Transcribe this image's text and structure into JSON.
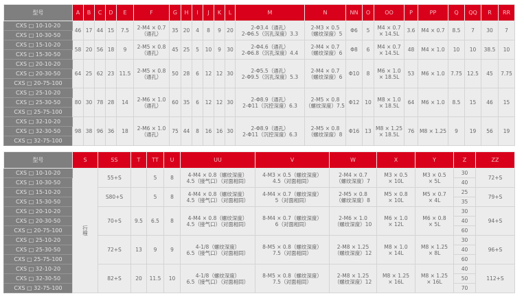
{
  "colors": {
    "header": "#d8001b",
    "model_column": "#7f7f7f",
    "body": "#ececec"
  },
  "table1": {
    "headers": [
      "型号",
      "A",
      "B",
      "C",
      "D",
      "E",
      "F",
      "G",
      "H",
      "I",
      "J",
      "K",
      "L",
      "M",
      "N",
      "NN",
      "O",
      "OO",
      "P",
      "PP",
      "Q",
      "QQ",
      "R",
      "RR"
    ],
    "groups": [
      {
        "models": [
          "CXS □ 10-10-20",
          "CXS □ 10-30-50"
        ],
        "values": [
          "46",
          "17",
          "44",
          "15",
          "7.5",
          "2-M4 × 0.7\n（通孔）",
          "35",
          "20",
          "4",
          "8",
          "9",
          "20",
          "2-Φ3.4（通孔）\n2-Φ6.5（沉孔深度）3.3",
          "2-M3 × 0.5\n（螺纹深度）5",
          "Φ6",
          "5",
          "M4 × 0.7\n× 14.5L",
          "3.6",
          "M4 × 0.7",
          "8.5",
          "7",
          "30",
          "7"
        ]
      },
      {
        "models": [
          "CXS □ 15-10-20",
          "CXS □ 15-30-50"
        ],
        "values": [
          "58",
          "20",
          "56",
          "18",
          "9",
          "2-M5 × 0.8\n（通孔）",
          "45",
          "25",
          "5",
          "10",
          "9",
          "30",
          "2-Φ4.6（通孔）\n2-Φ6.8（沉孔深度）4.4",
          "2-M4 × 0.7\n（螺纹深度）6",
          "Φ8",
          "6",
          "M4 × 0.7\n× 14.5L",
          "48",
          "M4 × 1.0",
          "10",
          "10",
          "38.5",
          "10"
        ]
      },
      {
        "models": [
          "CXS □ 20-10-20",
          "CXS □ 20-30-50",
          "CXS □ 20-75-100"
        ],
        "values": [
          "64",
          "25",
          "62",
          "23",
          "11.5",
          "2-M5 × 0.8\n（通孔）",
          "50",
          "28",
          "6",
          "12",
          "12",
          "30",
          "2-Φ5.5（通孔）\n2-Φ9.5（沉孔深度）5.3",
          "2-M4 × 0.7\n（螺纹深度）6",
          "Φ10",
          "8",
          "M6 × 1.0\n× 18.5L",
          "53",
          "M6 × 1.0",
          "7.75",
          "12.5",
          "45",
          "7.75"
        ]
      },
      {
        "models": [
          "CXS □ 25-10-20",
          "CXS □ 25-30-50",
          "CXS □ 25-75-100"
        ],
        "values": [
          "80",
          "30",
          "78",
          "28",
          "14",
          "2-M6 × 1.0\n（通孔）",
          "60",
          "35",
          "6",
          "12",
          "12",
          "30",
          "2-Φ8.9（通孔）\n2-Φ11（沉控深度）6.3",
          "2-M5 × 0.8\n（螺纹深度）7.5",
          "Φ12",
          "10",
          "M8 × 1.0\n× 18.5L",
          "64",
          "M6 × 1.0",
          "8.5",
          "15",
          "46",
          "15"
        ]
      },
      {
        "models": [
          "CXS □ 32-10-20",
          "CXS □ 32-30-50",
          "CXS □ 32-75-100"
        ],
        "values": [
          "98",
          "38",
          "96",
          "36",
          "18",
          "2-M6 × 1.0\n（通孔）",
          "75",
          "44",
          "8",
          "16",
          "16",
          "30",
          "2-Φ8.9（通孔）\n2-Φ11（沉控深度）6.3",
          "2-M5 × 0.8\n（螺纹深度）8",
          "Φ16",
          "13",
          "M8 × 1.25\n× 18.5L",
          "76",
          "M8 × 1.25",
          "9",
          "19",
          "56",
          "19"
        ]
      }
    ]
  },
  "table2": {
    "headers": [
      "型号",
      "S",
      "SS",
      "T",
      "TT",
      "U",
      "UU",
      "V",
      "W",
      "X",
      "Y",
      "Z",
      "ZZ"
    ],
    "s_label": "行程",
    "groups": [
      {
        "models": [
          "CXS □ 10-10-20",
          "CXS □ 10-30-50"
        ],
        "values": [
          "55+S",
          "",
          "5",
          "8",
          "4-M4 × 0.8（螺纹深度）\n4.5（接气口）（对面相同）",
          "4-M3 × 0.5（螺纹深度）\n4.5（对面相同）",
          "2-M4 × 0.7\n（螺纹深度）7",
          "M3 × 0.5\n× 10L",
          "M3 × 0.5\n× 5L"
        ],
        "z": [
          "30",
          "40"
        ],
        "zz": "72+S"
      },
      {
        "models": [
          "CXS □ 15-10-20",
          "CXS □ 15-30-50"
        ],
        "values": [
          "S80+S",
          "",
          "5",
          "8",
          "4-M4 × 0.8（螺纹深度）\n4.5（接气口）（对面相同）",
          "4-M4 × 0.7（螺纹深度）\n5（对面相同）",
          "2-M5 × 0.8\n（螺纹深度）8",
          "M5 × 0.8\n× 10L",
          "M5 × 0.7\n× 4L"
        ],
        "z": [
          "25",
          "35"
        ],
        "zz": "79+S"
      },
      {
        "models": [
          "CXS □ 20-10-20",
          "CXS □ 20-30-50",
          "CXS □ 20-75-100"
        ],
        "values": [
          "70+S",
          "9.5",
          "6.5",
          "8",
          "4-M4 × 0.8（螺纹深度）\n4.5（接气口）（对面相同）",
          "8-M4 × 0.7（螺纹深度）\n6（对面相同）",
          "2-M6 × 1.0\n（螺纹深度）10",
          "M6 × 1.0\n× 12L",
          "M6 × 0.8\n× 5L"
        ],
        "z": [
          "30",
          "40",
          "60"
        ],
        "zz": "94+S"
      },
      {
        "models": [
          "CXS □ 25-10-20",
          "CXS □ 25-30-50",
          "CXS □ 25-75-100"
        ],
        "values": [
          "72+S",
          "13",
          "9",
          "9",
          "4-1/8（螺纹深度）\n6.5（接气口）（对面相同）",
          "8-M5 × 0.8（螺纹深度）\n7.5（对面相同）",
          "2-M8 × 1.25\n（螺纹深度）12",
          "M8 × 1.0\n× 14L",
          "M8 × 1.25\n× 8L"
        ],
        "z": [
          "30",
          "40",
          "60"
        ],
        "zz": "96+S"
      },
      {
        "models": [
          "CXS □ 32-10-20",
          "CXS □ 32-30-50",
          "CXS □ 32-75-100"
        ],
        "values": [
          "82+S",
          "20",
          "11.5",
          "10",
          "4-1/8（螺纹深度）\n6.5（接气口）（对面相同）",
          "8-M5 × 0.8（螺纹深度）\n7.5（对面相同）",
          "2-M8 × 1.25\n（螺纹深度）12",
          "M8 × 1.25\n× 16L",
          "M8 × 1.25\n× 16L"
        ],
        "z": [
          "40",
          "50",
          "70"
        ],
        "zz": "112+S"
      }
    ]
  }
}
